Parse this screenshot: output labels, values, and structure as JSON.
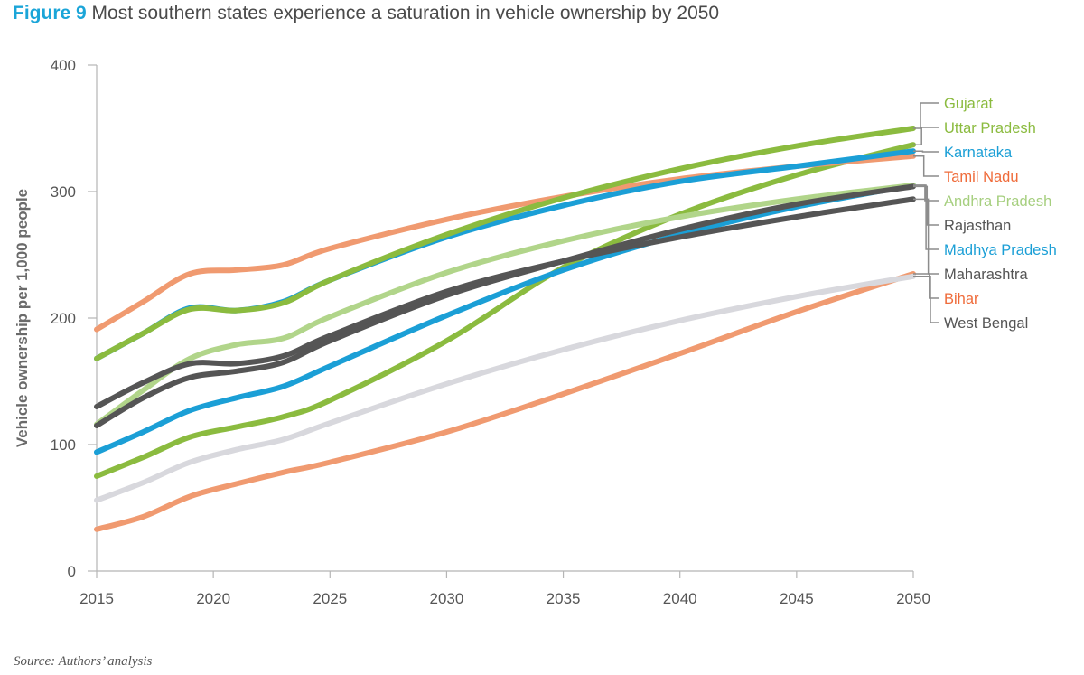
{
  "figure": {
    "label": "Figure 9",
    "title": "Most southern states experience a saturation in vehicle ownership by 2050"
  },
  "source": "Source: Authors’ analysis",
  "chart_data": {
    "type": "line",
    "ylabel": "Vehicle ownership per 1,000 people",
    "xlabel": "",
    "xlim": [
      2015,
      2050
    ],
    "ylim": [
      0,
      400
    ],
    "xticks": [
      "2015",
      "2020",
      "2025",
      "2030",
      "2035",
      "2040",
      "2045",
      "2050"
    ],
    "yticks": [
      "0",
      "100",
      "200",
      "300",
      "400"
    ],
    "grid": false,
    "legend": "right, labels with leader lines",
    "x": [
      2015,
      2017,
      2019,
      2021,
      2023,
      2025,
      2030,
      2035,
      2040,
      2045,
      2050
    ],
    "series": [
      {
        "name": "Gujarat",
        "color": "#8bbb3f",
        "values": [
          168,
          188,
          207,
          206,
          212,
          230,
          266,
          295,
          318,
          336,
          350
        ]
      },
      {
        "name": "Uttar Pradesh",
        "color": "#8bbb3f",
        "values": [
          75,
          90,
          106,
          114,
          122,
          135,
          182,
          240,
          282,
          313,
          337
        ]
      },
      {
        "name": "Karnataka",
        "color": "#1b9fd6",
        "values": [
          168,
          188,
          208,
          206,
          213,
          230,
          264,
          289,
          308,
          320,
          332
        ]
      },
      {
        "name": "Tamil Nadu",
        "color": "#f09a70",
        "values": [
          191,
          213,
          235,
          238,
          242,
          255,
          278,
          296,
          310,
          320,
          328
        ]
      },
      {
        "name": "Andhra Pradesh",
        "color": "#b1d58a",
        "values": [
          116,
          143,
          168,
          179,
          184,
          201,
          236,
          261,
          280,
          294,
          305
        ]
      },
      {
        "name": "Rajasthan",
        "color": "#555555",
        "values": [
          115,
          137,
          153,
          158,
          165,
          182,
          218,
          245,
          270,
          290,
          304
        ]
      },
      {
        "name": "Madhya Pradesh",
        "color": "#1b9fd6",
        "values": [
          94,
          110,
          127,
          137,
          146,
          162,
          202,
          238,
          266,
          288,
          305
        ]
      },
      {
        "name": "Maharashtra",
        "color": "#555555",
        "values": [
          130,
          149,
          164,
          164,
          170,
          186,
          221,
          245,
          264,
          280,
          294
        ]
      },
      {
        "name": "Bihar",
        "color": "#f09a70",
        "values": [
          33,
          43,
          59,
          69,
          78,
          86,
          110,
          140,
          172,
          205,
          235
        ]
      },
      {
        "name": "West Bengal",
        "color": "#d8d8dd",
        "values": [
          56,
          70,
          86,
          96,
          104,
          117,
          148,
          175,
          198,
          217,
          233
        ]
      }
    ],
    "label_colors": {
      "Gujarat": "#8bbb3f",
      "Uttar Pradesh": "#8bbb3f",
      "Karnataka": "#1b9fd6",
      "Tamil Nadu": "#ef6b3a",
      "Andhra Pradesh": "#a6cf7f",
      "Rajasthan": "#555555",
      "Madhya Pradesh": "#1b9fd6",
      "Maharashtra": "#555555",
      "Bihar": "#ef6b3a",
      "West Bengal": "#555555"
    },
    "draw_order": [
      "Bihar",
      "West Bengal",
      "Uttar Pradesh",
      "Madhya Pradesh",
      "Andhra Pradesh",
      "Rajasthan",
      "Maharashtra",
      "Tamil Nadu",
      "Karnataka",
      "Gujarat"
    ]
  }
}
